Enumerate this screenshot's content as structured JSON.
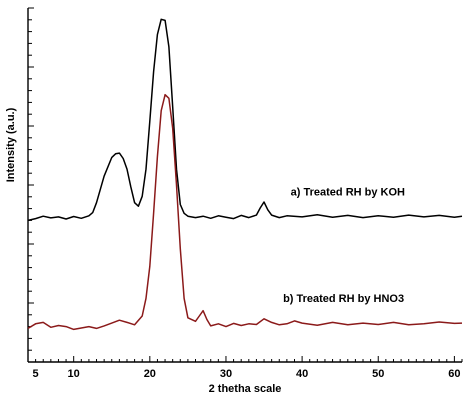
{
  "chart_data": {
    "type": "line",
    "xlabel": "2 thetha scale",
    "ylabel": "Intensity (a.u.)",
    "xlim": [
      4,
      61
    ],
    "ylim": [
      0,
      100
    ],
    "y_tick_labels_shown": false,
    "x_ticks": [
      {
        "value": 5,
        "label": "5"
      },
      {
        "value": 10,
        "label": "10"
      },
      {
        "value": 20,
        "label": "20"
      },
      {
        "value": 30,
        "label": "30"
      },
      {
        "value": 40,
        "label": "40"
      },
      {
        "value": 50,
        "label": "50"
      },
      {
        "value": 60,
        "label": "60"
      }
    ],
    "series": [
      {
        "name": "a) Treated RH by KOH",
        "color": "#000000",
        "x": [
          4,
          5,
          6,
          7,
          8,
          9,
          10,
          11,
          12,
          12.5,
          13,
          14,
          15,
          15.5,
          16,
          16.5,
          17,
          17.5,
          18,
          18.5,
          19,
          19.5,
          20,
          20.5,
          21,
          21.5,
          22,
          22.5,
          23,
          23.5,
          24,
          24.5,
          25,
          26,
          27,
          28,
          29,
          30,
          31,
          32,
          33,
          34,
          34.5,
          35,
          35.5,
          36,
          37,
          38,
          40,
          42,
          44,
          46,
          48,
          50,
          52,
          54,
          56,
          58,
          60,
          61
        ],
        "y": [
          40.0,
          40.5,
          41.2,
          40.7,
          41.0,
          40.4,
          41.1,
          40.6,
          41.3,
          42.2,
          45.0,
          52.5,
          57.8,
          58.8,
          59.0,
          57.5,
          54.5,
          49.5,
          45.0,
          44.0,
          46.8,
          54.5,
          68.0,
          82.0,
          92.5,
          96.8,
          96.5,
          89.0,
          72.0,
          54.5,
          44.5,
          42.0,
          41.2,
          40.8,
          41.2,
          40.6,
          41.3,
          40.9,
          40.5,
          41.4,
          40.8,
          41.5,
          43.5,
          45.2,
          43.0,
          41.5,
          40.8,
          41.3,
          41.0,
          41.6,
          40.9,
          41.4,
          40.8,
          41.3,
          40.9,
          41.5,
          41.0,
          41.4,
          40.9,
          41.2
        ]
      },
      {
        "name": "b) Treated RH by HNO3",
        "color": "#8b1a1a",
        "x": [
          4,
          5,
          6,
          7,
          8,
          9,
          10,
          11,
          12,
          13,
          14,
          15,
          16,
          17,
          18,
          19,
          19.5,
          20,
          20.5,
          21,
          21.5,
          22,
          22.5,
          23,
          23.5,
          24,
          24.5,
          25,
          26,
          26.5,
          27,
          27.5,
          28,
          29,
          30,
          31,
          32,
          33,
          34,
          35,
          36,
          37,
          38,
          39,
          40,
          42,
          44,
          46,
          48,
          50,
          52,
          54,
          56,
          58,
          60,
          61
        ],
        "y": [
          9.5,
          10.8,
          11.2,
          9.8,
          10.3,
          10.0,
          9.2,
          9.6,
          10.0,
          9.5,
          10.2,
          11.0,
          11.8,
          11.2,
          10.5,
          13.0,
          18.0,
          27.0,
          42.0,
          58.0,
          71.0,
          75.5,
          74.5,
          66.0,
          50.0,
          32.0,
          18.0,
          12.5,
          11.5,
          13.0,
          14.5,
          12.0,
          10.2,
          10.8,
          10.0,
          10.9,
          10.3,
          10.8,
          10.6,
          12.2,
          11.2,
          10.5,
          10.8,
          11.6,
          11.0,
          10.4,
          11.2,
          10.5,
          11.0,
          10.6,
          11.2,
          10.5,
          10.8,
          11.3,
          10.9,
          11.0
        ]
      }
    ],
    "annotations": [
      {
        "text": "a) Treated RH by KOH",
        "x": 38.5,
        "y": 47
      },
      {
        "text": "b) Treated RH by HNO3",
        "x": 37.5,
        "y": 17
      }
    ]
  }
}
